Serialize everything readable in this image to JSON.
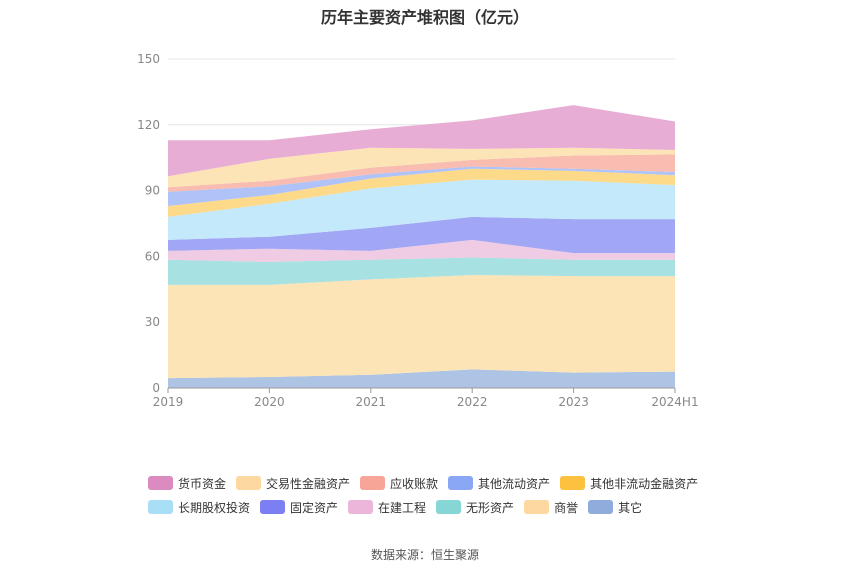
{
  "chart_data": {
    "type": "area",
    "stacked": true,
    "title": "历年主要资产堆积图（亿元）",
    "categories": [
      "2019",
      "2020",
      "2021",
      "2022",
      "2023",
      "2024H1"
    ],
    "ylim": [
      0,
      150
    ],
    "yticks": [
      0,
      30,
      60,
      90,
      120,
      150
    ],
    "grid": true,
    "legend_position": "bottom",
    "series": [
      {
        "name": "其它",
        "color": "#aec4e5",
        "values": [
          4.5,
          5,
          6,
          8.5,
          7,
          7.5
        ]
      },
      {
        "name": "商誉",
        "color": "#fde4b6",
        "values": [
          42.5,
          42,
          43.5,
          43,
          44,
          43.5
        ]
      },
      {
        "name": "无形资产",
        "color": "#a8e1e1",
        "values": [
          11.5,
          10.5,
          9,
          8,
          7.5,
          7.5
        ]
      },
      {
        "name": "在建工程",
        "color": "#f0cbe4",
        "values": [
          4,
          6,
          4,
          8,
          3,
          3
        ]
      },
      {
        "name": "固定资产",
        "color": "#a1a6f5",
        "values": [
          5,
          5.5,
          10.5,
          10.5,
          15.5,
          15.5
        ]
      },
      {
        "name": "长期股权投资",
        "color": "#c4e9fa",
        "values": [
          10.5,
          15,
          18,
          17,
          17.5,
          15.5
        ]
      },
      {
        "name": "其他非流动金融资产",
        "color": "#fdd98a",
        "values": [
          5,
          4,
          4.5,
          5,
          4.5,
          4.5
        ]
      },
      {
        "name": "其他流动资产",
        "color": "#b0c3f8",
        "values": [
          6.5,
          4,
          2,
          1,
          1,
          1.5
        ]
      },
      {
        "name": "应收账款",
        "color": "#f9bcb0",
        "values": [
          2,
          2.5,
          3,
          3,
          6,
          8
        ]
      },
      {
        "name": "交易性金融资产",
        "color": "#fde4b6",
        "values": [
          5,
          10,
          9,
          5,
          3.5,
          2
        ]
      },
      {
        "name": "货币资金",
        "color": "#e8add4",
        "values": [
          16.5,
          8.5,
          8.5,
          13,
          19.5,
          13
        ]
      }
    ],
    "legend_order": [
      [
        "货币资金",
        "交易性金融资产",
        "应收账款",
        "其他流动资产",
        "其他非流动金融资产"
      ],
      [
        "长期股权投资",
        "固定资产",
        "在建工程",
        "无形资产",
        "商誉",
        "其它"
      ]
    ],
    "legend_colors": {
      "货币资金": "#dc8bc0",
      "交易性金融资产": "#fdd8a0",
      "应收账款": "#f7a597",
      "其他流动资产": "#8aa7f5",
      "其他非流动金融资产": "#fcc13f",
      "长期股权投资": "#a9def7",
      "固定资产": "#7b7ff2",
      "在建工程": "#ebb6da",
      "无形资产": "#86d6d6",
      "商誉": "#fdd8a0",
      "其它": "#90acdc"
    }
  },
  "source_text": "数据来源：恒生聚源"
}
